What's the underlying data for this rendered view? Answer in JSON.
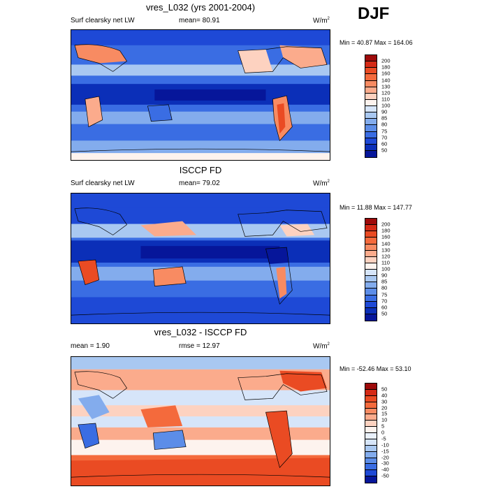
{
  "season": "DJF",
  "panels": [
    {
      "title": "vres_L032 (yrs 2001-2004)",
      "left_label": "Surf clearsky net LW",
      "center_label": "mean=  80.91",
      "units": "W/m",
      "units_sup": "2",
      "minmax": "Min =  40.87 Max = 164.06",
      "colorbar": {
        "labels": [
          "200",
          "180",
          "160",
          "140",
          "130",
          "120",
          "110",
          "100",
          "90",
          "85",
          "80",
          "75",
          "70",
          "60",
          "50"
        ],
        "colors": [
          "#9e0a0a",
          "#d52a16",
          "#ea4b23",
          "#f46a3c",
          "#f88b62",
          "#fbab8c",
          "#fdd2c0",
          "#fdf3ee",
          "#d6e5f9",
          "#a9c8f1",
          "#83aced",
          "#5c8de8",
          "#3a6de3",
          "#1e49d6",
          "#0b2fb8",
          "#06169a"
        ],
        "minmax_values": [
          40.87,
          164.06
        ],
        "mean": 80.91
      }
    },
    {
      "title": "ISCCP FD",
      "left_label": "Surf clearsky net LW",
      "center_label": "mean=  79.02",
      "units": "W/m",
      "units_sup": "2",
      "minmax": "Min =  11.88 Max = 147.77",
      "colorbar": {
        "labels": [
          "200",
          "180",
          "160",
          "140",
          "130",
          "120",
          "110",
          "100",
          "90",
          "85",
          "80",
          "75",
          "70",
          "60",
          "50"
        ],
        "colors": [
          "#9e0a0a",
          "#d52a16",
          "#ea4b23",
          "#f46a3c",
          "#f88b62",
          "#fbab8c",
          "#fdd2c0",
          "#fdf3ee",
          "#d6e5f9",
          "#a9c8f1",
          "#83aced",
          "#5c8de8",
          "#3a6de3",
          "#1e49d6",
          "#0b2fb8",
          "#06169a"
        ],
        "minmax_values": [
          11.88,
          147.77
        ],
        "mean": 79.02
      }
    },
    {
      "title": "vres_L032 - ISCCP FD",
      "left_label": "mean =   1.90",
      "center_label": "rmse =  12.97",
      "units": "W/m",
      "units_sup": "2",
      "minmax": "Min = -52.46 Max =  53.10",
      "colorbar": {
        "labels": [
          "50",
          "40",
          "30",
          "20",
          "15",
          "10",
          "5",
          "0",
          "-5",
          "-10",
          "-15",
          "-20",
          "-30",
          "-40",
          "-50"
        ],
        "colors": [
          "#9e0a0a",
          "#d52a16",
          "#ea4b23",
          "#f46a3c",
          "#f88b62",
          "#fbab8c",
          "#fdd2c0",
          "#fdf3ee",
          "#eaf1fb",
          "#d6e5f9",
          "#a9c8f1",
          "#83aced",
          "#5c8de8",
          "#3a6de3",
          "#1e49d6",
          "#06169a"
        ],
        "minmax_values": [
          -52.46,
          53.1
        ],
        "mean": 1.9,
        "rmse": 12.97
      }
    }
  ]
}
